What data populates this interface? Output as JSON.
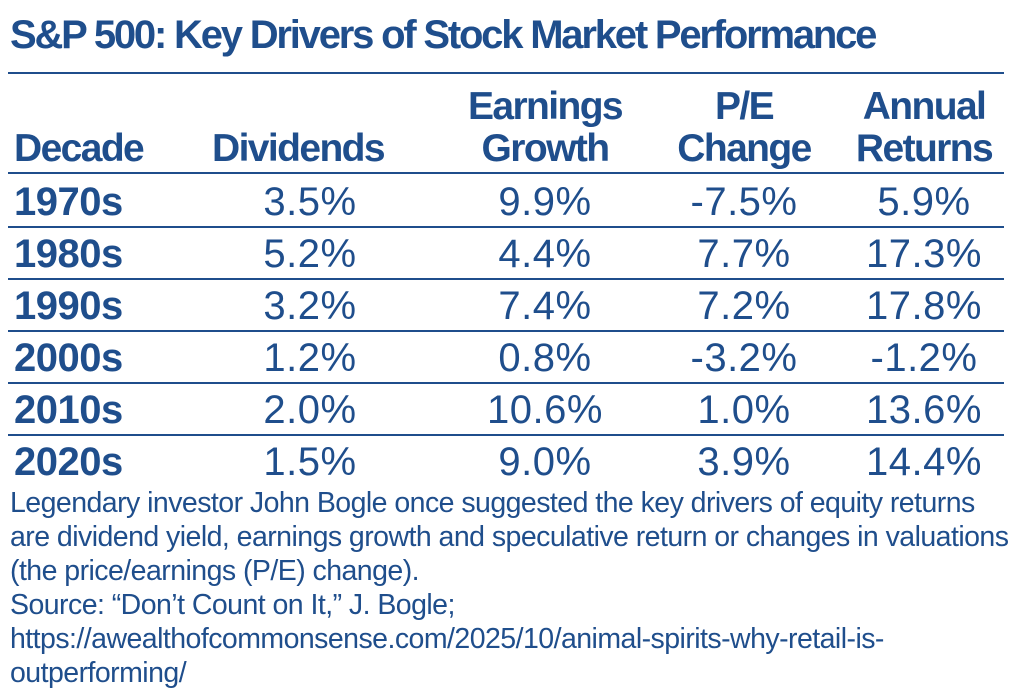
{
  "title": "S&P 500: Key Drivers of Stock Market Performance",
  "colors": {
    "text": "#1f4e8c",
    "background": "#ffffff",
    "rules": "#1f4e8c"
  },
  "chart_data": {
    "type": "table",
    "title": "S&P 500: Key Drivers of Stock Market Performance",
    "columns": [
      {
        "key": "decade",
        "lines": [
          "Decade"
        ]
      },
      {
        "key": "dividends",
        "lines": [
          "Dividends"
        ]
      },
      {
        "key": "earnings_growth",
        "lines": [
          "Earnings",
          "Growth"
        ]
      },
      {
        "key": "pe_change",
        "lines": [
          "P/E",
          "Change"
        ]
      },
      {
        "key": "annual_returns",
        "lines": [
          "Annual",
          "Returns"
        ]
      }
    ],
    "rows": [
      {
        "decade": "1970s",
        "values": [
          "3.5%",
          "9.9%",
          "-7.5%",
          "5.9%"
        ]
      },
      {
        "decade": "1980s",
        "values": [
          "5.2%",
          "4.4%",
          "7.7%",
          "17.3%"
        ]
      },
      {
        "decade": "1990s",
        "values": [
          "3.2%",
          "7.4%",
          "7.2%",
          "17.8%"
        ]
      },
      {
        "decade": "2000s",
        "values": [
          "1.2%",
          "0.8%",
          "-3.2%",
          "-1.2%"
        ]
      },
      {
        "decade": "2010s",
        "values": [
          "2.0%",
          "10.6%",
          "1.0%",
          "13.6%"
        ]
      },
      {
        "decade": "2020s",
        "values": [
          "1.5%",
          "9.0%",
          "3.9%",
          "14.4%"
        ]
      }
    ],
    "units": "percent"
  },
  "footnote": {
    "description": "Legendary investor John Bogle once suggested the key drivers of equity returns are dividend yield, earnings growth and speculative return or changes in valuations (the price/earnings (P/E) change).",
    "source": "Source: “Don’t Count on It,” J. Bogle; https://awealthofcommonsense.com/2025/10/animal-spirits-why-retail-is-outperforming/"
  }
}
